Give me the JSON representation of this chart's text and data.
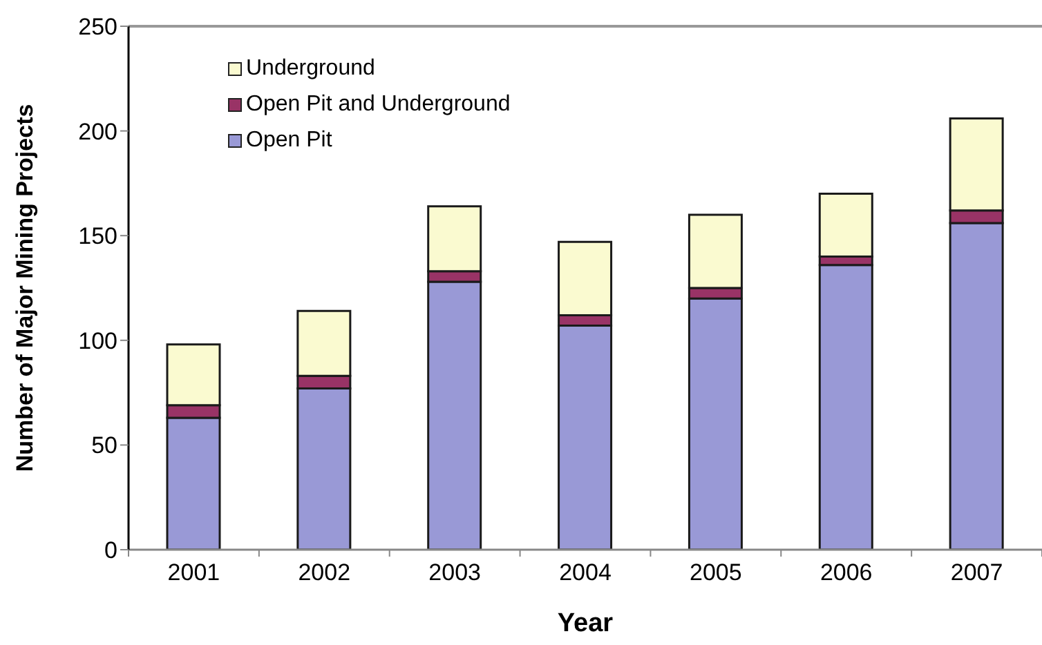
{
  "chart_data": {
    "type": "bar",
    "xlabel": "Year",
    "ylabel": "Number of Major Mining Projects",
    "categories": [
      "2001",
      "2002",
      "2003",
      "2004",
      "2005",
      "2006",
      "2007"
    ],
    "series": [
      {
        "name": "Open Pit",
        "color": "#9999d6",
        "values": [
          63,
          77,
          128,
          107,
          120,
          136,
          156
        ]
      },
      {
        "name": "Open Pit and Underground",
        "color": "#993366",
        "values": [
          6,
          6,
          5,
          5,
          5,
          4,
          6
        ]
      },
      {
        "name": "Underground",
        "color": "#fafad0",
        "values": [
          29,
          31,
          31,
          35,
          35,
          30,
          44
        ]
      }
    ],
    "stacked": true,
    "ylim": [
      0,
      250
    ],
    "yticks": [
      0,
      50,
      100,
      150,
      200,
      250
    ],
    "legend": "top left"
  }
}
